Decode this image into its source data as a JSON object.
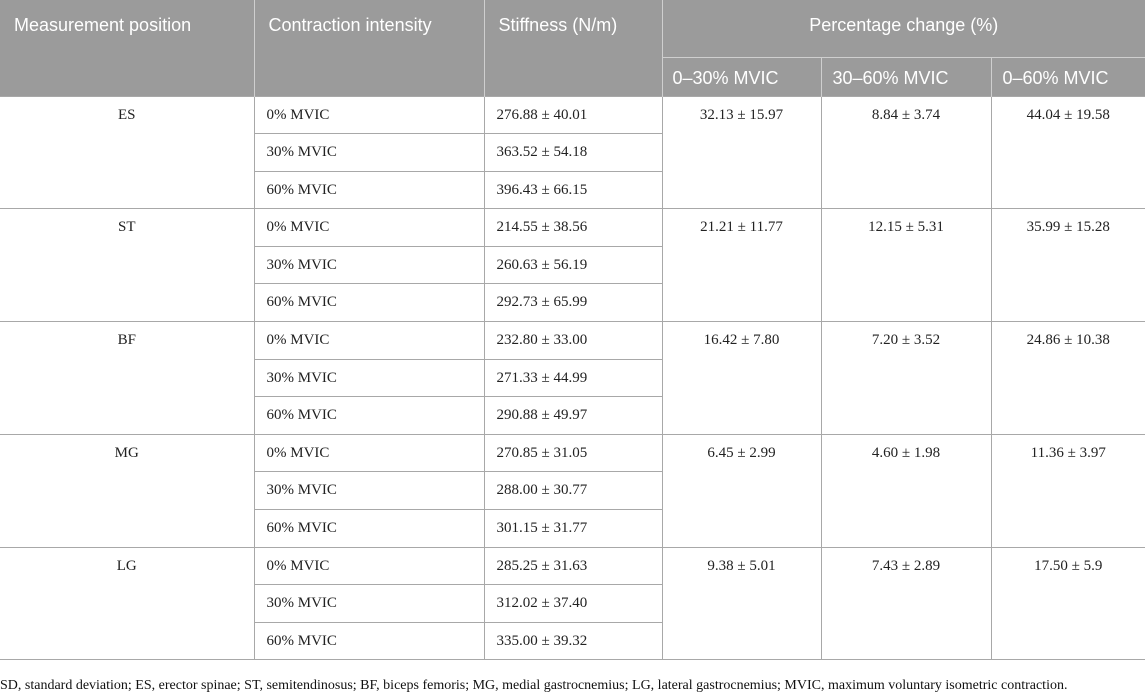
{
  "headers": {
    "measurement_position": "Measurement position",
    "contraction_intensity": "Contraction intensity",
    "stiffness": "Stiffness (N/m)",
    "percentage_change": "Percentage change (%)",
    "sub": [
      "0–30% MVIC",
      "30–60% MVIC",
      "0–60% MVIC"
    ]
  },
  "groups": [
    {
      "position": "ES",
      "rows": [
        {
          "intensity": "0% MVIC",
          "stiffness": "276.88 ± 40.01"
        },
        {
          "intensity": "30% MVIC",
          "stiffness": "363.52 ± 54.18"
        },
        {
          "intensity": "60% MVIC",
          "stiffness": "396.43 ± 66.15"
        }
      ],
      "change": [
        "32.13 ± 15.97",
        "8.84 ± 3.74",
        "44.04 ± 19.58"
      ]
    },
    {
      "position": "ST",
      "rows": [
        {
          "intensity": "0% MVIC",
          "stiffness": "214.55 ± 38.56"
        },
        {
          "intensity": "30% MVIC",
          "stiffness": "260.63 ± 56.19"
        },
        {
          "intensity": "60% MVIC",
          "stiffness": "292.73 ± 65.99"
        }
      ],
      "change": [
        "21.21 ± 11.77",
        "12.15 ± 5.31",
        "35.99 ± 15.28"
      ]
    },
    {
      "position": "BF",
      "rows": [
        {
          "intensity": "0% MVIC",
          "stiffness": "232.80 ± 33.00"
        },
        {
          "intensity": "30% MVIC",
          "stiffness": "271.33 ± 44.99"
        },
        {
          "intensity": "60% MVIC",
          "stiffness": "290.88 ± 49.97"
        }
      ],
      "change": [
        "16.42 ± 7.80",
        "7.20 ± 3.52",
        "24.86 ± 10.38"
      ]
    },
    {
      "position": "MG",
      "rows": [
        {
          "intensity": "0% MVIC",
          "stiffness": "270.85 ± 31.05"
        },
        {
          "intensity": "30% MVIC",
          "stiffness": "288.00 ± 30.77"
        },
        {
          "intensity": "60% MVIC",
          "stiffness": "301.15 ± 31.77"
        }
      ],
      "change": [
        "6.45 ± 2.99",
        "4.60 ± 1.98",
        "11.36 ± 3.97"
      ]
    },
    {
      "position": "LG",
      "rows": [
        {
          "intensity": "0% MVIC",
          "stiffness": "285.25 ± 31.63"
        },
        {
          "intensity": "30% MVIC",
          "stiffness": "312.02 ± 37.40"
        },
        {
          "intensity": "60% MVIC",
          "stiffness": "335.00 ± 39.32"
        }
      ],
      "change": [
        "9.38 ± 5.01",
        "7.43 ± 2.89",
        "17.50 ± 5.9"
      ]
    }
  ],
  "footnote": "SD, standard deviation; ES, erector spinae; ST, semitendinosus; BF, biceps femoris; MG, medial gastrocnemius; LG, lateral gastrocnemius; MVIC, maximum voluntary isometric contraction."
}
